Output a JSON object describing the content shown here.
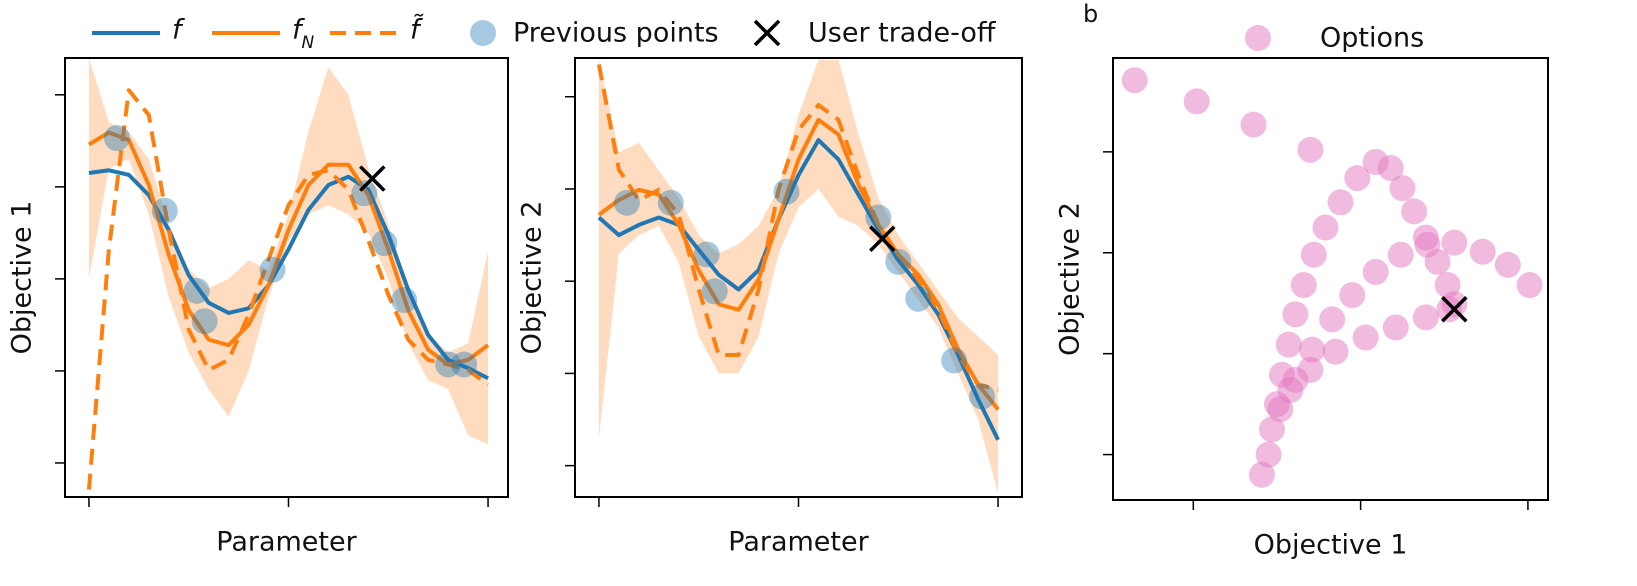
{
  "chart_data": [
    {
      "type": "line",
      "xlabel": "Parameter",
      "ylabel": "Objective 1",
      "xlim": [
        -0.06,
        1.05
      ],
      "ylim": [
        -0.37,
        4.4
      ],
      "xticks": [
        0,
        0.5,
        1
      ],
      "yticks": [
        0,
        1,
        2,
        3,
        4
      ],
      "x": [
        0,
        0.05,
        0.1,
        0.15,
        0.2,
        0.25,
        0.3,
        0.35,
        0.4,
        0.45,
        0.5,
        0.55,
        0.6,
        0.65,
        0.7,
        0.75,
        0.8,
        0.85,
        0.9,
        0.95,
        1.0
      ],
      "series": [
        {
          "name": "f",
          "color": "#1f77b4",
          "dashed": false,
          "values": [
            3.15,
            3.18,
            3.13,
            2.91,
            2.53,
            2.04,
            1.74,
            1.63,
            1.68,
            1.93,
            2.32,
            2.75,
            3.02,
            3.11,
            2.97,
            2.48,
            1.88,
            1.39,
            1.12,
            1.03,
            0.92
          ]
        },
        {
          "name": "f",
          "subscript": "N",
          "color": "#ff7f0e",
          "dashed": false,
          "values": [
            3.46,
            3.59,
            3.51,
            3.02,
            2.26,
            1.66,
            1.34,
            1.28,
            1.5,
            1.93,
            2.53,
            3.02,
            3.24,
            3.24,
            2.91,
            2.32,
            1.66,
            1.23,
            1.07,
            1.12,
            1.28
          ]
        },
        {
          "name": "f̃",
          "color": "#ff7f0e",
          "dashed": true,
          "values": [
            -0.29,
            2.32,
            4.05,
            3.78,
            2.53,
            1.45,
            1.01,
            1.12,
            1.61,
            2.21,
            2.8,
            3.13,
            3.18,
            2.97,
            2.42,
            1.83,
            1.34,
            1.12,
            1.07,
            1.01,
            0.85
          ]
        }
      ],
      "band": {
        "color": "#ffdcc0",
        "upper": [
          4.4,
          3.7,
          3.6,
          3.3,
          2.6,
          2.1,
          1.9,
          2.0,
          2.2,
          2.1,
          2.7,
          3.6,
          4.3,
          4.0,
          3.2,
          2.6,
          1.9,
          1.4,
          1.2,
          1.3,
          2.3
        ],
        "lower": [
          2.0,
          3.2,
          3.3,
          2.7,
          1.8,
          1.2,
          0.8,
          0.5,
          1.0,
          1.8,
          2.4,
          2.7,
          2.8,
          2.7,
          2.5,
          2.0,
          1.3,
          0.9,
          0.8,
          0.3,
          0.2
        ]
      },
      "points": {
        "name": "Previous points",
        "color": "#1f77b4",
        "x": [
          0.07,
          0.19,
          0.27,
          0.29,
          0.46,
          0.69,
          0.74,
          0.79,
          0.9,
          0.94
        ],
        "y": [
          3.53,
          2.74,
          1.87,
          1.54,
          2.1,
          2.93,
          2.39,
          1.77,
          1.07,
          1.07
        ]
      },
      "marker": {
        "name": "User trade-off",
        "x": 0.71,
        "y": 3.09
      }
    },
    {
      "type": "line",
      "xlabel": "Parameter",
      "ylabel": "Objective 2",
      "xlim": [
        -0.06,
        1.06
      ],
      "ylim": [
        -0.34,
        4.42
      ],
      "xticks": [
        0,
        0.5,
        1
      ],
      "yticks": [
        0,
        1,
        2,
        3,
        4
      ],
      "x": [
        0,
        0.05,
        0.1,
        0.15,
        0.2,
        0.25,
        0.3,
        0.35,
        0.4,
        0.45,
        0.5,
        0.55,
        0.6,
        0.65,
        0.7,
        0.75,
        0.8,
        0.85,
        0.9,
        0.95,
        1.0
      ],
      "series": [
        {
          "color": "#1f77b4",
          "dashed": false,
          "values": [
            2.69,
            2.5,
            2.61,
            2.69,
            2.61,
            2.34,
            2.07,
            1.91,
            2.12,
            2.67,
            3.15,
            3.53,
            3.32,
            2.94,
            2.56,
            2.23,
            1.96,
            1.64,
            1.2,
            0.72,
            0.28
          ]
        },
        {
          "color": "#ff7f0e",
          "dashed": false,
          "values": [
            2.72,
            2.88,
            2.99,
            2.94,
            2.61,
            2.12,
            1.75,
            1.69,
            2.02,
            2.67,
            3.32,
            3.75,
            3.59,
            3.05,
            2.61,
            2.29,
            2.07,
            1.75,
            1.26,
            0.88,
            0.61
          ]
        },
        {
          "color": "#ff7f0e",
          "dashed": true,
          "values": [
            4.35,
            3.21,
            2.88,
            2.99,
            2.72,
            1.91,
            1.2,
            1.2,
            1.91,
            2.99,
            3.64,
            3.91,
            3.75,
            3.15,
            2.61,
            2.29,
            2.02,
            1.69,
            1.2,
            0.88,
            0.82
          ]
        }
      ],
      "band": {
        "color": "#ffdcc0",
        "upper": [
          4.4,
          3.4,
          3.5,
          3.2,
          2.9,
          2.5,
          2.3,
          2.4,
          2.6,
          3.0,
          3.8,
          4.4,
          4.4,
          3.6,
          2.9,
          2.5,
          2.2,
          1.9,
          1.6,
          1.4,
          1.2
        ],
        "lower": [
          0.3,
          2.3,
          2.5,
          2.6,
          2.2,
          1.4,
          1.0,
          1.0,
          1.4,
          2.3,
          2.8,
          3.0,
          2.7,
          2.6,
          2.4,
          2.1,
          1.8,
          1.5,
          1.0,
          0.5,
          -0.3
        ]
      },
      "points": {
        "color": "#1f77b4",
        "x": [
          0.07,
          0.18,
          0.27,
          0.29,
          0.47,
          0.7,
          0.75,
          0.8,
          0.89,
          0.96
        ],
        "y": [
          2.85,
          2.85,
          2.29,
          1.89,
          2.97,
          2.69,
          2.21,
          1.81,
          1.14,
          0.75
        ]
      },
      "marker": {
        "x": 0.71,
        "y": 2.46
      }
    },
    {
      "type": "scatter",
      "label": "b",
      "xlabel": "Objective 1",
      "ylabel": "Objective 2",
      "xlim": [
        -0.48,
        2.12
      ],
      "ylim": [
        -0.45,
        3.93
      ],
      "xticks": [
        0,
        1,
        2
      ],
      "yticks": [
        0,
        1,
        2,
        3
      ],
      "series": [
        {
          "name": "Options",
          "color": "#e377c2",
          "x": [
            -0.35,
            0.02,
            0.36,
            0.7,
            0.41,
            0.45,
            0.47,
            0.5,
            0.53,
            0.57,
            0.61,
            0.66,
            0.72,
            0.79,
            0.88,
            0.98,
            1.09,
            1.18,
            1.25,
            1.32,
            1.39,
            1.46,
            1.52,
            1.56,
            0.52,
            0.61,
            0.71,
            0.83,
            0.95,
            1.09,
            1.24,
            1.4,
            1.56,
            1.73,
            1.88,
            2.01,
            0.58,
            0.7,
            0.85,
            1.03,
            1.21,
            1.39,
            1.53
          ],
          "y": [
            3.71,
            3.5,
            3.27,
            3.02,
            -0.2,
            0.0,
            0.25,
            0.5,
            0.79,
            1.09,
            1.39,
            1.68,
            1.98,
            2.25,
            2.5,
            2.74,
            2.9,
            2.84,
            2.64,
            2.41,
            2.15,
            1.91,
            1.68,
            1.49,
            0.45,
            0.74,
            1.04,
            1.34,
            1.58,
            1.81,
            1.98,
            2.08,
            2.1,
            2.01,
            1.88,
            1.68,
            0.64,
            0.84,
            1.02,
            1.16,
            1.26,
            1.36,
            1.44
          ]
        }
      ],
      "marker": {
        "x": 1.56,
        "y": 1.44
      }
    }
  ]
}
